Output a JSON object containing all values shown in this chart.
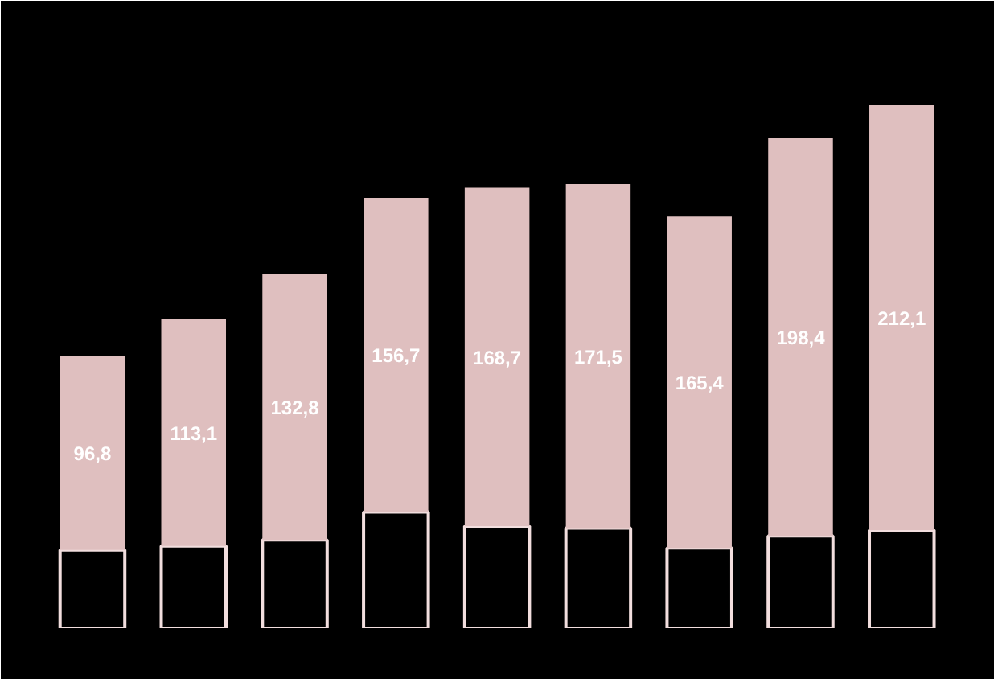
{
  "chart_data": {
    "type": "bar",
    "stacked": true,
    "categories": [
      null,
      null,
      null,
      null,
      null,
      null,
      null,
      null,
      null
    ],
    "ylim": [
      0,
      313
    ],
    "series": [
      {
        "color": "#000000",
        "values": [
          39,
          41,
          44,
          58,
          51,
          50,
          40,
          46,
          49
        ]
      },
      {
        "color": "#dfbfbf",
        "values": [
          96.8,
          113.1,
          132.8,
          156.7,
          168.7,
          171.5,
          165.4,
          198.4,
          212.1
        ],
        "value_labels": [
          "96,8",
          "113,1",
          "132,8",
          "156,7",
          "168,7",
          "171,5",
          "165,4",
          "198,4",
          "212,1"
        ]
      }
    ],
    "grid": false
  }
}
